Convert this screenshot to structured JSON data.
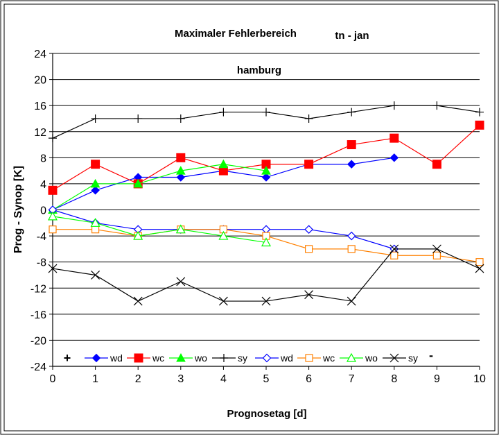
{
  "chart_data": {
    "type": "line",
    "title": "Maximaler Fehlerbereich",
    "title_suffix": "tn - jan",
    "subtitle": "hamburg",
    "xlabel": "Prognosetag [d]",
    "ylabel": "Prog - Synop [K]",
    "ylim": [
      -24,
      24
    ],
    "xlim": [
      0,
      10
    ],
    "yticks": [
      -24,
      -20,
      -16,
      -12,
      -8,
      -4,
      0,
      4,
      8,
      12,
      16,
      20,
      24
    ],
    "xticks": [
      0,
      1,
      2,
      3,
      4,
      5,
      6,
      7,
      8,
      9,
      10
    ],
    "grid": "horizontal",
    "legend_position": "bottom",
    "legend_plus": "+",
    "legend_minus": "-",
    "series": [
      {
        "name": "wd",
        "color": "#0000ff",
        "marker": "diamond-filled",
        "x": [
          0,
          1,
          2,
          3,
          4,
          5,
          6,
          7,
          8
        ],
        "values": [
          0,
          3,
          5,
          5,
          6,
          5,
          7,
          7,
          8
        ]
      },
      {
        "name": "wc",
        "color": "#ff0000",
        "marker": "square-filled",
        "x": [
          0,
          1,
          2,
          3,
          4,
          5,
          6,
          7,
          8,
          9,
          10
        ],
        "values": [
          3,
          7,
          4,
          8,
          6,
          7,
          7,
          10,
          11,
          7,
          13
        ]
      },
      {
        "name": "wo",
        "color": "#00ff00",
        "marker": "triangle-filled",
        "x": [
          0,
          1,
          2,
          3,
          4,
          5
        ],
        "values": [
          0,
          4,
          4,
          6,
          7,
          6
        ]
      },
      {
        "name": "sy",
        "color": "#000000",
        "marker": "plus",
        "x": [
          0,
          1,
          2,
          3,
          4,
          5,
          6,
          7,
          8,
          9,
          10
        ],
        "values": [
          11,
          14,
          14,
          14,
          15,
          15,
          14,
          15,
          16,
          16,
          15
        ]
      },
      {
        "name": "wd",
        "color": "#0000ff",
        "marker": "diamond-open",
        "x": [
          0,
          1,
          2,
          3,
          4,
          5,
          6,
          7,
          8
        ],
        "values": [
          0,
          -2,
          -3,
          -3,
          -3,
          -3,
          -3,
          -4,
          -6
        ]
      },
      {
        "name": "wc",
        "color": "#ff8000",
        "marker": "square-open",
        "x": [
          0,
          1,
          2,
          3,
          4,
          5,
          6,
          7,
          8,
          9,
          10
        ],
        "values": [
          -3,
          -3,
          -4,
          -3,
          -3,
          -4,
          -6,
          -6,
          -7,
          -7,
          -8
        ]
      },
      {
        "name": "wo",
        "color": "#00ff00",
        "marker": "triangle-open",
        "x": [
          0,
          1,
          2,
          3,
          4,
          5
        ],
        "values": [
          -1,
          -2,
          -4,
          -3,
          -4,
          -5
        ]
      },
      {
        "name": "sy",
        "color": "#000000",
        "marker": "x",
        "x": [
          0,
          1,
          2,
          3,
          4,
          5,
          6,
          7,
          8,
          9,
          10
        ],
        "values": [
          -9,
          -10,
          -14,
          -11,
          -14,
          -14,
          -13,
          -14,
          -6,
          -6,
          -9
        ]
      }
    ]
  }
}
